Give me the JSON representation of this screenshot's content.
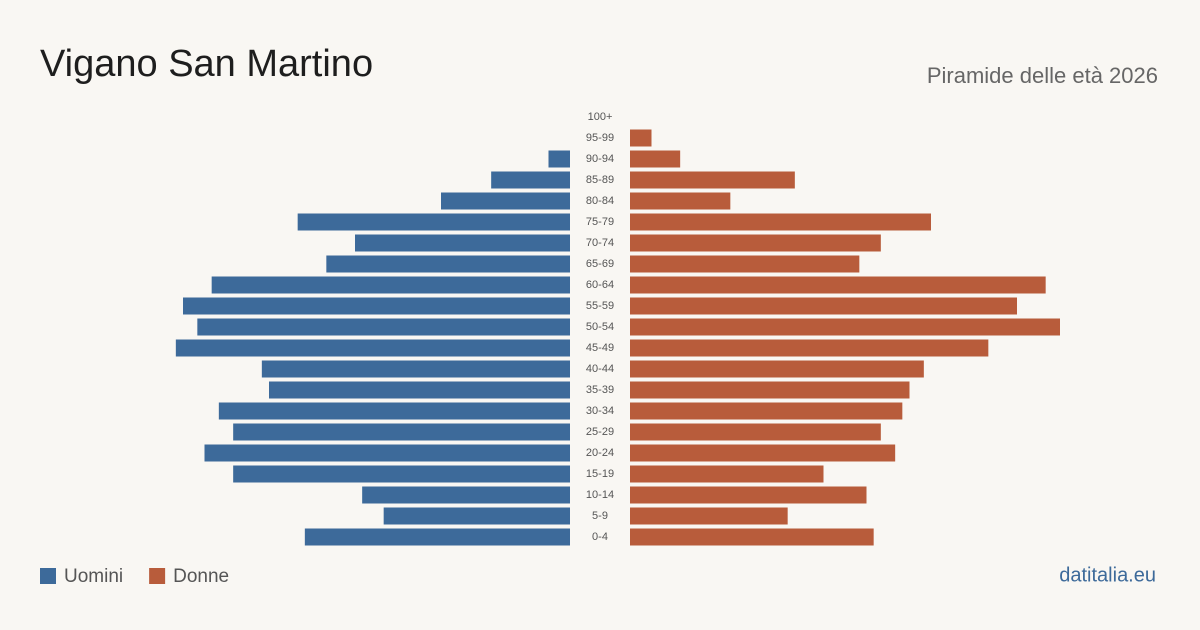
{
  "chart_data": {
    "type": "pyramid",
    "title": "Vigano San Martino",
    "subtitle": "Piramide delle età 2026",
    "source": "datitalia.eu",
    "categories": [
      "100+",
      "95-99",
      "90-94",
      "85-89",
      "80-84",
      "75-79",
      "70-74",
      "65-69",
      "60-64",
      "55-59",
      "50-54",
      "45-49",
      "40-44",
      "35-39",
      "30-34",
      "25-29",
      "20-24",
      "15-19",
      "10-14",
      "5-9",
      "0-4"
    ],
    "series": [
      {
        "name": "Uomini",
        "color": "#3d6a9a",
        "values": [
          0,
          0,
          3,
          11,
          18,
          38,
          30,
          34,
          50,
          54,
          52,
          55,
          43,
          42,
          49,
          47,
          51,
          47,
          29,
          26,
          37
        ]
      },
      {
        "name": "Donne",
        "color": "#b85c3b",
        "values": [
          0,
          3,
          7,
          23,
          14,
          42,
          35,
          32,
          58,
          54,
          60,
          50,
          41,
          39,
          38,
          35,
          37,
          27,
          33,
          22,
          34
        ]
      }
    ],
    "xlim": [
      0,
      60
    ]
  }
}
